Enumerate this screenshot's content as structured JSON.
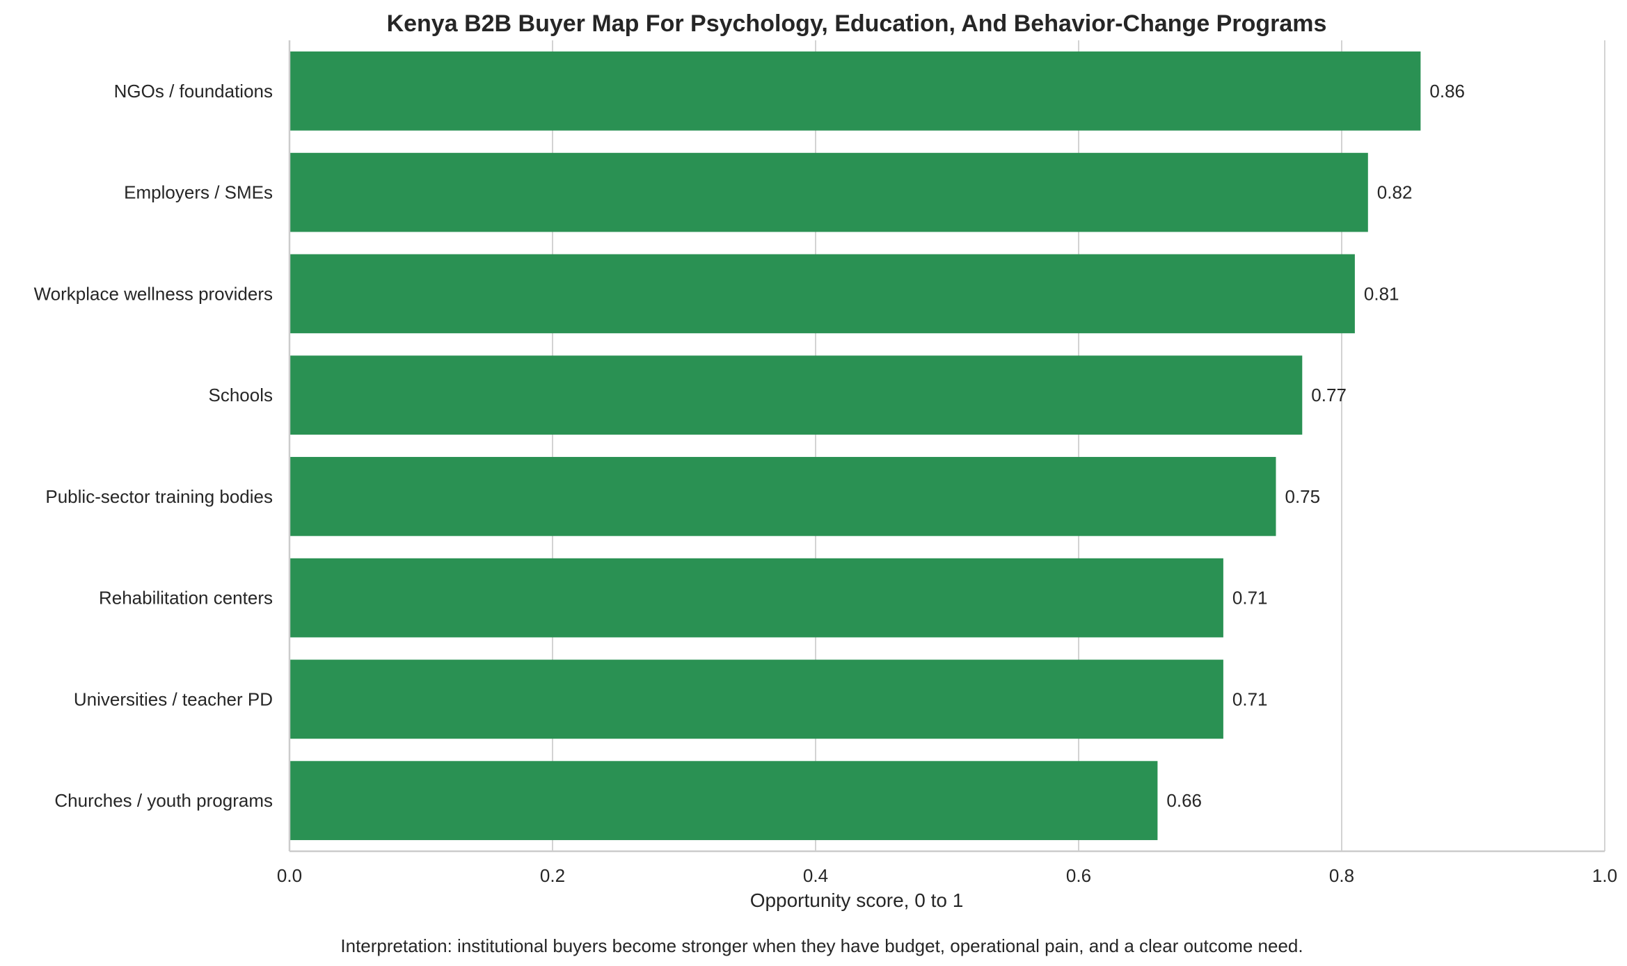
{
  "chart_data": {
    "type": "bar",
    "orientation": "horizontal",
    "title": "Kenya B2B Buyer Map For Psychology, Education, And Behavior-Change Programs",
    "xlabel": "Opportunity score, 0 to 1",
    "ylabel": "",
    "xlim": [
      0,
      1
    ],
    "ticks": [
      "0.0",
      "0.2",
      "0.4",
      "0.6",
      "0.8",
      "1.0"
    ],
    "tick_values": [
      0,
      0.2,
      0.4,
      0.6,
      0.8,
      1.0
    ],
    "grid": "vertical",
    "bar_color": "#2a9153",
    "categories": [
      "NGOs / foundations",
      "Employers / SMEs",
      "Workplace wellness providers",
      "Schools",
      "Public-sector training bodies",
      "Rehabilitation centers",
      "Universities / teacher PD",
      "Churches / youth programs"
    ],
    "values": [
      0.86,
      0.82,
      0.81,
      0.77,
      0.75,
      0.71,
      0.71,
      0.66
    ],
    "value_labels": [
      "0.86",
      "0.82",
      "0.81",
      "0.77",
      "0.75",
      "0.71",
      "0.71",
      "0.66"
    ],
    "annotation": "Interpretation: institutional buyers become stronger when they have budget, operational pain, and a clear outcome need."
  }
}
